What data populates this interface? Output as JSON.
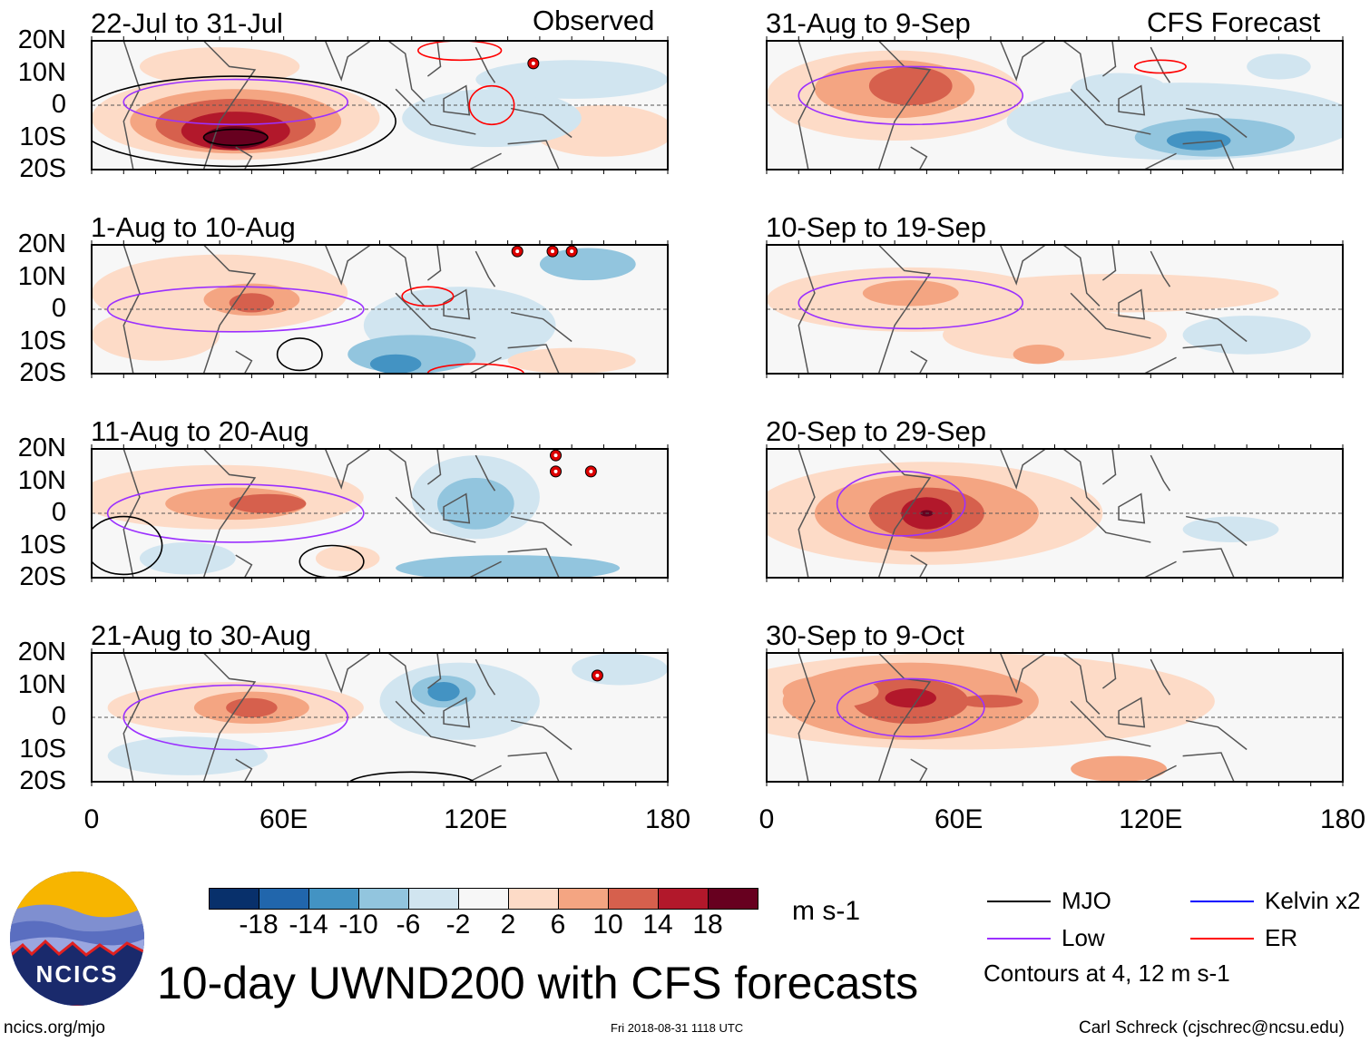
{
  "title": "10-day UWND200 with CFS forecasts",
  "site": "ncics.org/mjo",
  "timestamp": "Fri 2018-08-31 1118 UTC",
  "author": "Carl Schreck (cjschrec@ncsu.edu)",
  "logo_text": "NCICS",
  "column_labels": {
    "left": "Observed",
    "right": "CFS Forecast"
  },
  "lat_ticks": [
    "20N",
    "10N",
    "0",
    "10S",
    "20S"
  ],
  "lon_ticks": [
    "0",
    "60E",
    "120E",
    "180"
  ],
  "panels": [
    {
      "label": "22-Jul to 31-Jul",
      "type": "observed"
    },
    {
      "label": "1-Aug to 10-Aug",
      "type": "observed"
    },
    {
      "label": "11-Aug to 20-Aug",
      "type": "observed"
    },
    {
      "label": "21-Aug to 30-Aug",
      "type": "observed"
    },
    {
      "label": "31-Aug to 9-Sep",
      "type": "forecast"
    },
    {
      "label": "10-Sep to 19-Sep",
      "type": "forecast"
    },
    {
      "label": "20-Sep to 29-Sep",
      "type": "forecast"
    },
    {
      "label": "30-Sep to 9-Oct",
      "type": "forecast"
    }
  ],
  "colorbar": {
    "labels": [
      "-18",
      "-14",
      "-10",
      "-6",
      "-2",
      "2",
      "6",
      "10",
      "14",
      "18"
    ],
    "colors": [
      "#08306b",
      "#2166ac",
      "#4393c3",
      "#92c5de",
      "#d1e5f0",
      "#f7f7f7",
      "#fddbc7",
      "#f4a582",
      "#d6604d",
      "#b2182b",
      "#67001f"
    ],
    "units": "m s-1"
  },
  "legend": [
    {
      "label": "MJO",
      "color": "#000000"
    },
    {
      "label": "Low",
      "color": "#9b30ff"
    },
    {
      "label": "Kelvin x2",
      "color": "#0000ff"
    },
    {
      "label": "ER",
      "color": "#ff0000"
    }
  ],
  "contour_note": "Contours at 4, 12 m s-1",
  "chart_data": {
    "type": "heatmap",
    "variable": "200-hPa zonal wind anomaly",
    "units": "m s-1",
    "xlim": [
      0,
      180
    ],
    "ylim": [
      -20,
      20
    ],
    "levels": [
      -18,
      -14,
      -10,
      -6,
      -2,
      2,
      6,
      10,
      14,
      18
    ],
    "contour_levels": [
      4,
      12
    ]
  }
}
